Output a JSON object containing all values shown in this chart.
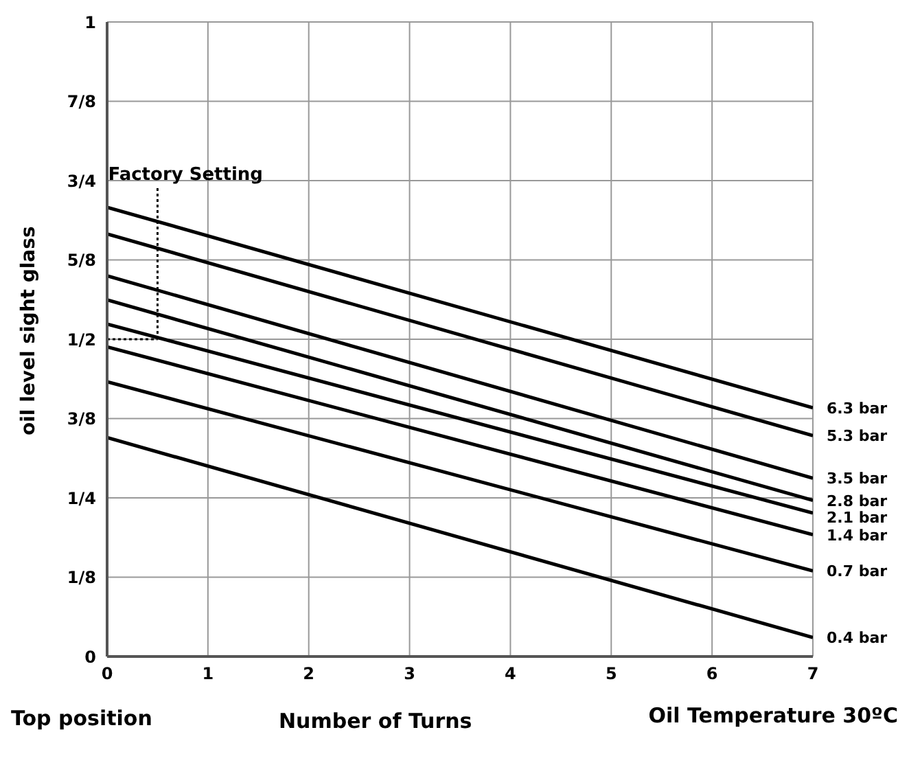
{
  "chart_data": {
    "type": "line",
    "xlabel": "Number of Turns",
    "ylabel": "oil level sight glass",
    "x": [
      0,
      7
    ],
    "series": [
      {
        "name": "6.3 bar",
        "color": "#000000",
        "values": [
          0.708,
          0.392
        ]
      },
      {
        "name": "5.3 bar",
        "color": "#000000",
        "values": [
          0.666,
          0.348
        ]
      },
      {
        "name": "3.5 bar",
        "color": "#000000",
        "values": [
          0.6,
          0.281
        ]
      },
      {
        "name": "2.8 bar",
        "color": "#000000",
        "values": [
          0.562,
          0.246
        ]
      },
      {
        "name": "2.1 bar",
        "color": "#000000",
        "values": [
          0.524,
          0.226
        ]
      },
      {
        "name": "1.4 bar",
        "color": "#000000",
        "values": [
          0.488,
          0.192
        ]
      },
      {
        "name": "0.7 bar",
        "color": "#000000",
        "values": [
          0.433,
          0.135
        ]
      },
      {
        "name": "0.4 bar",
        "color": "#000000",
        "values": [
          0.345,
          0.03
        ]
      }
    ],
    "xlim": [
      0,
      7
    ],
    "xticks": [
      0,
      1,
      2,
      3,
      4,
      5,
      6,
      7
    ],
    "ylim": [
      0,
      1
    ],
    "yticks": [
      0,
      {
        "value": 0.125,
        "label": "1/8"
      },
      {
        "value": 0.25,
        "label": "1/4"
      },
      {
        "value": 0.375,
        "label": "3/8"
      },
      {
        "value": 0.5,
        "label": "1/2"
      },
      {
        "value": 0.625,
        "label": "5/8"
      },
      {
        "value": 0.75,
        "label": "3/4"
      },
      {
        "value": 0.875,
        "label": "7/8"
      },
      1
    ],
    "annotations": [
      {
        "text": "Factory Setting",
        "x": 0.5,
        "y": 0.5
      },
      "Top position",
      "Oil Temperature 30ºC"
    ],
    "grid": true,
    "legend": false,
    "marker": "none",
    "line_style": "solid"
  }
}
